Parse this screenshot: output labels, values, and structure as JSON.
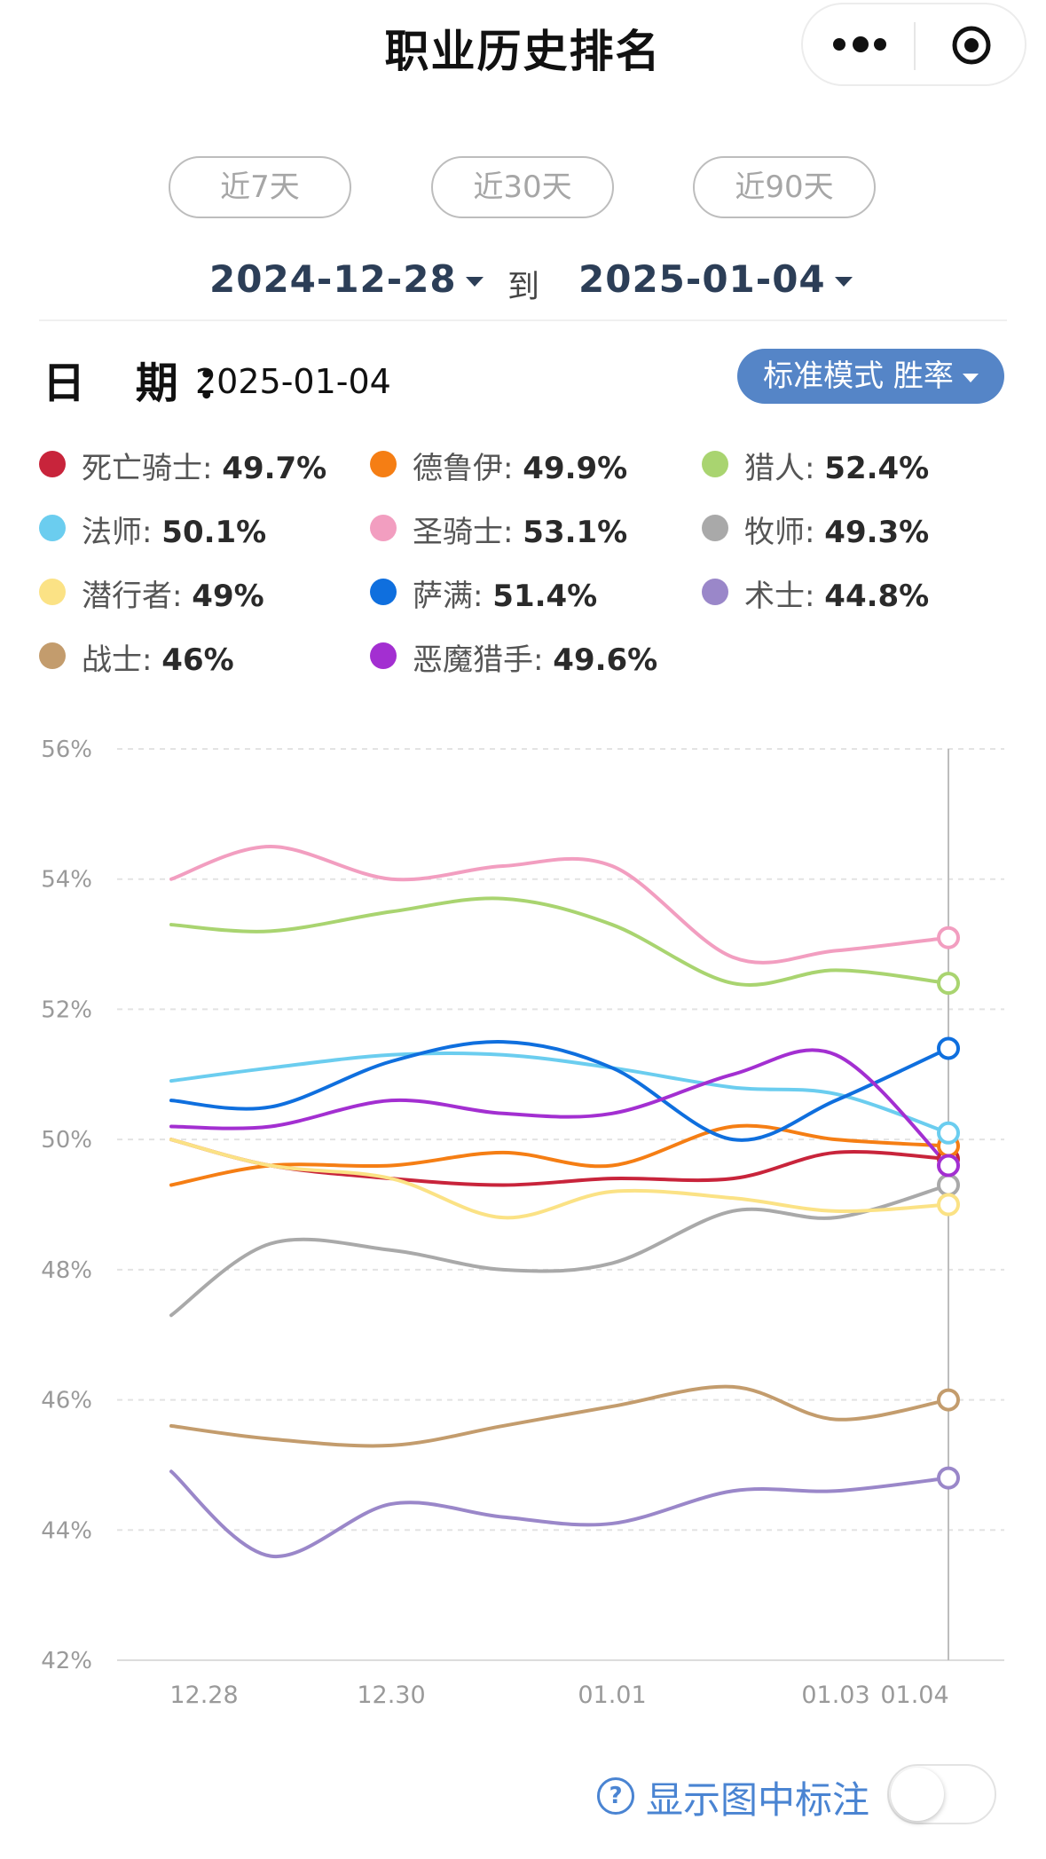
{
  "header": {
    "title": "职业历史排名"
  },
  "ranges": [
    {
      "label": "近7天"
    },
    {
      "label": "近30天"
    },
    {
      "label": "近90天"
    }
  ],
  "date_range": {
    "start": "2024-12-28",
    "to": "到",
    "end": "2025-01-04"
  },
  "selected": {
    "date_label": "日 期：",
    "date_value": "2025-01-04"
  },
  "mode": {
    "label": "标准模式 胜率"
  },
  "legend": [
    {
      "name": "死亡骑士:",
      "value": "49.7%",
      "color": "#c8243b"
    },
    {
      "name": "德鲁伊:",
      "value": "49.9%",
      "color": "#f57e14"
    },
    {
      "name": "猎人:",
      "value": "52.4%",
      "color": "#a9d470"
    },
    {
      "name": "法师:",
      "value": "50.1%",
      "color": "#6bcdef"
    },
    {
      "name": "圣骑士:",
      "value": "53.1%",
      "color": "#f29ec0"
    },
    {
      "name": "牧师:",
      "value": "49.3%",
      "color": "#a9a9a9"
    },
    {
      "name": "潜行者:",
      "value": "49%",
      "color": "#fbe285"
    },
    {
      "name": "萨满:",
      "value": "51.4%",
      "color": "#0f6fde"
    },
    {
      "name": "术士:",
      "value": "44.8%",
      "color": "#9a87c9"
    },
    {
      "name": "战士:",
      "value": "46%",
      "color": "#c39c6d"
    },
    {
      "name": "恶魔猎手:",
      "value": "49.6%",
      "color": "#a32fd1"
    }
  ],
  "chart_data": {
    "type": "line",
    "x": [
      "12.28",
      "12.29",
      "12.30",
      "12.31",
      "01.01",
      "01.02",
      "01.03",
      "01.04"
    ],
    "x_tick_labels": [
      "12.28",
      "12.30",
      "01.01",
      "01.03",
      "01.04"
    ],
    "ylim": [
      42,
      56
    ],
    "y_ticks": [
      "56%",
      "54%",
      "52%",
      "50%",
      "48%",
      "46%",
      "44%",
      "42%"
    ],
    "grid": true,
    "highlight": "01.04",
    "series": [
      {
        "name": "死亡骑士",
        "color": "#c8243b",
        "values": [
          50.0,
          49.6,
          49.4,
          49.3,
          49.4,
          49.4,
          49.8,
          49.7
        ]
      },
      {
        "name": "德鲁伊",
        "color": "#f57e14",
        "values": [
          49.3,
          49.6,
          49.6,
          49.8,
          49.6,
          50.2,
          50.0,
          49.9
        ]
      },
      {
        "name": "猎人",
        "color": "#a9d470",
        "values": [
          53.3,
          53.2,
          53.5,
          53.7,
          53.3,
          52.4,
          52.6,
          52.4
        ]
      },
      {
        "name": "法师",
        "color": "#6bcdef",
        "values": [
          50.9,
          51.1,
          51.3,
          51.3,
          51.1,
          50.8,
          50.7,
          50.1
        ]
      },
      {
        "name": "圣骑士",
        "color": "#f29ec0",
        "values": [
          54.0,
          54.5,
          54.0,
          54.2,
          54.2,
          52.8,
          52.9,
          53.1
        ]
      },
      {
        "name": "牧师",
        "color": "#a9a9a9",
        "values": [
          47.3,
          48.4,
          48.3,
          48.0,
          48.1,
          48.9,
          48.8,
          49.3
        ]
      },
      {
        "name": "潜行者",
        "color": "#fbe285",
        "values": [
          50.0,
          49.6,
          49.4,
          48.8,
          49.2,
          49.1,
          48.9,
          49.0
        ]
      },
      {
        "name": "萨满",
        "color": "#0f6fde",
        "values": [
          50.6,
          50.5,
          51.2,
          51.5,
          51.1,
          50.0,
          50.6,
          51.4
        ]
      },
      {
        "name": "术士",
        "color": "#9a87c9",
        "values": [
          44.9,
          43.6,
          44.4,
          44.2,
          44.1,
          44.6,
          44.6,
          44.8
        ]
      },
      {
        "name": "战士",
        "color": "#c39c6d",
        "values": [
          45.6,
          45.4,
          45.3,
          45.6,
          45.9,
          46.2,
          45.7,
          46.0
        ]
      },
      {
        "name": "恶魔猎手",
        "color": "#a32fd1",
        "values": [
          50.2,
          50.2,
          50.6,
          50.4,
          50.4,
          51.0,
          51.3,
          49.6
        ]
      }
    ]
  },
  "footer": {
    "help_label": "显示图中标注",
    "toggle_on": false
  }
}
